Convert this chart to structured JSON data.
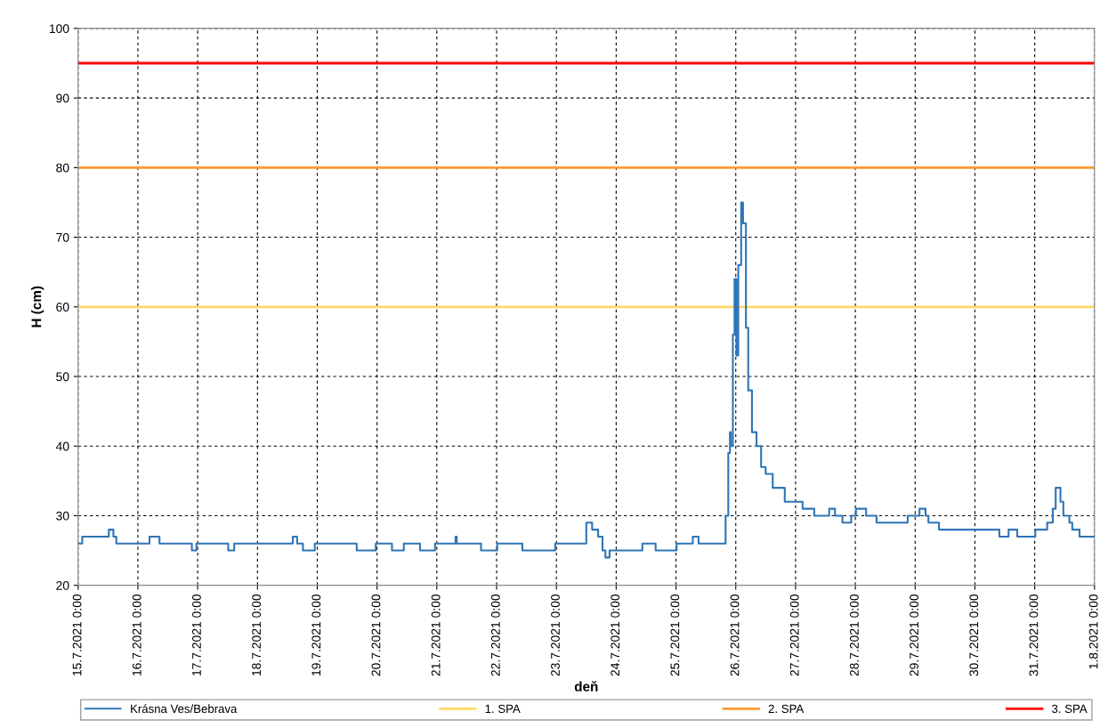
{
  "chart_data": {
    "type": "step",
    "xlabel": "deň",
    "ylabel": "H (cm)",
    "xlim": [
      "2021-07-15",
      "2021-08-01"
    ],
    "ylim": [
      20,
      100
    ],
    "yticks": [
      20,
      30,
      40,
      50,
      60,
      70,
      80,
      90,
      100
    ],
    "xticks": [
      {
        "value": "2021-07-15",
        "label": "15.7.2021 0:00"
      },
      {
        "value": "2021-07-16",
        "label": "16.7.2021 0:00"
      },
      {
        "value": "2021-07-17",
        "label": "17.7.2021 0:00"
      },
      {
        "value": "2021-07-18",
        "label": "18.7.2021 0:00"
      },
      {
        "value": "2021-07-19",
        "label": "19.7.2021 0:00"
      },
      {
        "value": "2021-07-20",
        "label": "20.7.2021 0:00"
      },
      {
        "value": "2021-07-21",
        "label": "21.7.2021 0:00"
      },
      {
        "value": "2021-07-22",
        "label": "22.7.2021 0:00"
      },
      {
        "value": "2021-07-23",
        "label": "23.7.2021 0:00"
      },
      {
        "value": "2021-07-24",
        "label": "24.7.2021 0:00"
      },
      {
        "value": "2021-07-25",
        "label": "25.7.2021 0:00"
      },
      {
        "value": "2021-07-26",
        "label": "26.7.2021 0:00"
      },
      {
        "value": "2021-07-27",
        "label": "27.7.2021 0:00"
      },
      {
        "value": "2021-07-28",
        "label": "28.7.2021 0:00"
      },
      {
        "value": "2021-07-29",
        "label": "29.7.2021 0:00"
      },
      {
        "value": "2021-07-30",
        "label": "30.7.2021 0:00"
      },
      {
        "value": "2021-07-31",
        "label": "31.7.2021 0:00"
      },
      {
        "value": "2021-08-01",
        "label": "1.8.2021 0:00"
      }
    ],
    "grid": true,
    "legend": "bottom",
    "marker": "none",
    "line_style": "solid",
    "series": [
      {
        "name": "Krásna Ves/Bebrava",
        "color": "#2e75b6",
        "x": [
          "2021-07-15T00:00",
          "2021-07-15T01:40",
          "2021-07-15T12:20",
          "2021-07-15T14:10",
          "2021-07-15T15:20",
          "2021-07-16T04:40",
          "2021-07-16T08:40",
          "2021-07-16T21:40",
          "2021-07-16T23:30",
          "2021-07-17T12:15",
          "2021-07-17T14:40",
          "2021-07-18T14:10",
          "2021-07-18T15:55",
          "2021-07-18T18:15",
          "2021-07-18T23:00",
          "2021-07-19T15:50",
          "2021-07-19T23:30",
          "2021-07-20T06:00",
          "2021-07-20T10:45",
          "2021-07-20T17:15",
          "2021-07-20T23:15",
          "2021-07-21T07:30",
          "2021-07-21T08:00",
          "2021-07-21T17:45",
          "2021-07-22T00:15",
          "2021-07-22T10:20",
          "2021-07-22T23:30",
          "2021-07-23T12:00",
          "2021-07-23T14:20",
          "2021-07-23T16:45",
          "2021-07-23T18:30",
          "2021-07-23T19:40",
          "2021-07-23T21:20",
          "2021-07-24T10:30",
          "2021-07-24T15:50",
          "2021-07-25T00:15",
          "2021-07-25T06:45",
          "2021-07-25T09:05",
          "2021-07-25T19:15",
          "2021-07-25T19:55",
          "2021-07-25T21:00",
          "2021-07-25T21:40",
          "2021-07-25T22:00",
          "2021-07-25T22:50",
          "2021-07-25T23:30",
          "2021-07-26T00:15",
          "2021-07-26T01:00",
          "2021-07-26T02:10",
          "2021-07-26T02:55",
          "2021-07-26T04:05",
          "2021-07-26T05:00",
          "2021-07-26T06:30",
          "2021-07-26T08:20",
          "2021-07-26T10:10",
          "2021-07-26T12:00",
          "2021-07-26T14:50",
          "2021-07-26T19:40",
          "2021-07-27T02:50",
          "2021-07-27T07:30",
          "2021-07-27T13:30",
          "2021-07-27T15:50",
          "2021-07-27T18:50",
          "2021-07-27T22:20",
          "2021-07-28T00:15",
          "2021-07-28T04:20",
          "2021-07-28T08:30",
          "2021-07-28T21:00",
          "2021-07-29T01:45",
          "2021-07-29T04:10",
          "2021-07-29T05:20",
          "2021-07-29T09:35",
          "2021-07-30T09:50",
          "2021-07-30T13:30",
          "2021-07-30T17:00",
          "2021-07-31T00:15",
          "2021-07-31T05:00",
          "2021-07-31T07:15",
          "2021-07-31T08:25",
          "2021-07-31T10:20",
          "2021-07-31T11:30",
          "2021-07-31T13:55",
          "2021-07-31T15:05",
          "2021-07-31T18:00",
          "2021-08-01T00:00"
        ],
        "values": [
          26,
          27,
          28,
          27,
          26,
          27,
          26,
          25,
          26,
          25,
          26,
          27,
          26,
          25,
          26,
          25,
          26,
          25,
          26,
          25,
          26,
          27,
          26,
          25,
          26,
          25,
          26,
          29,
          28,
          27,
          25,
          24,
          25,
          26,
          25,
          26,
          27,
          26,
          26,
          30,
          39,
          42,
          40,
          56,
          64,
          53,
          66,
          75,
          72,
          57,
          48,
          42,
          40,
          37,
          36,
          34,
          32,
          31,
          30,
          31,
          30,
          29,
          30,
          31,
          30,
          29,
          30,
          31,
          30,
          29,
          28,
          27,
          28,
          27,
          28,
          29,
          31,
          34,
          32,
          30,
          29,
          28,
          27,
          27
        ]
      }
    ],
    "ref_lines": [
      {
        "axis": "y",
        "value": 60,
        "label": "1. SPA",
        "color": "#ffd966",
        "line_style": "solid"
      },
      {
        "axis": "y",
        "value": 80,
        "label": "2. SPA",
        "color": "#ff9933",
        "line_style": "solid"
      },
      {
        "axis": "y",
        "value": 95,
        "label": "3. SPA",
        "color": "#ff0000",
        "line_style": "solid"
      }
    ]
  }
}
